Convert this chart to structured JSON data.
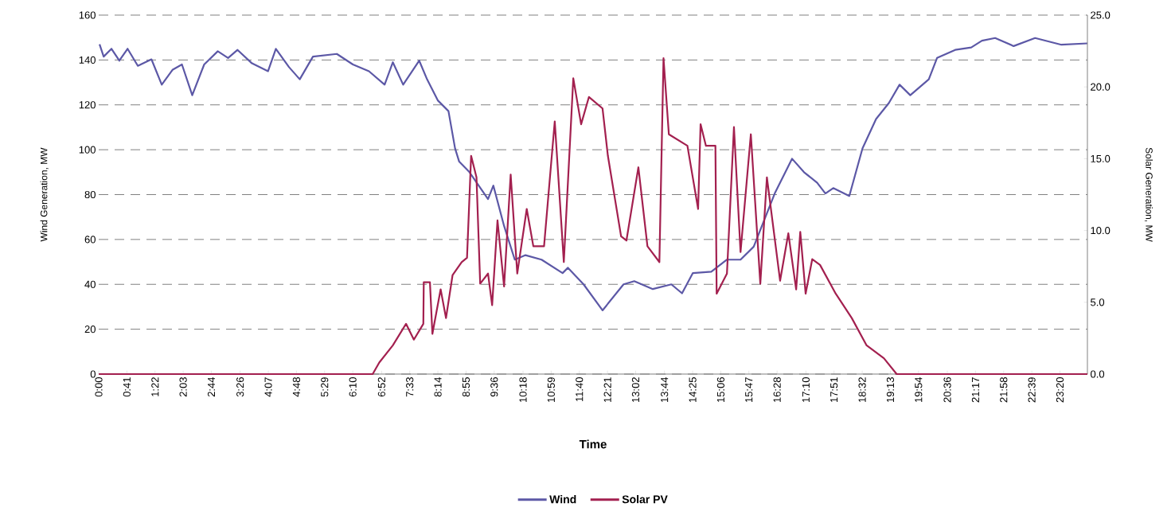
{
  "chart_data": {
    "type": "line",
    "xlabel": "Time",
    "ylabel": "Wind Generation, MW",
    "y2label": "Solar Generation, MW",
    "xlim": [
      0,
      24
    ],
    "xticks": [
      {
        "value": 0,
        "label": "0:00"
      },
      {
        "value": 0.683,
        "label": "0:41"
      },
      {
        "value": 1.367,
        "label": "1:22"
      },
      {
        "value": 2.05,
        "label": "2:03"
      },
      {
        "value": 2.733,
        "label": "2:44"
      },
      {
        "value": 3.433,
        "label": "3:26"
      },
      {
        "value": 4.117,
        "label": "4:07"
      },
      {
        "value": 4.8,
        "label": "4:48"
      },
      {
        "value": 5.483,
        "label": "5:29"
      },
      {
        "value": 6.167,
        "label": "6:10"
      },
      {
        "value": 6.867,
        "label": "6:52"
      },
      {
        "value": 7.55,
        "label": "7:33"
      },
      {
        "value": 8.233,
        "label": "8:14"
      },
      {
        "value": 8.917,
        "label": "8:55"
      },
      {
        "value": 9.6,
        "label": "9:36"
      },
      {
        "value": 10.3,
        "label": "10:18"
      },
      {
        "value": 10.983,
        "label": "10:59"
      },
      {
        "value": 11.667,
        "label": "11:40"
      },
      {
        "value": 12.35,
        "label": "12:21"
      },
      {
        "value": 13.033,
        "label": "13:02"
      },
      {
        "value": 13.733,
        "label": "13:44"
      },
      {
        "value": 14.417,
        "label": "14:25"
      },
      {
        "value": 15.1,
        "label": "15:06"
      },
      {
        "value": 15.783,
        "label": "15:47"
      },
      {
        "value": 16.467,
        "label": "16:28"
      },
      {
        "value": 17.167,
        "label": "17:10"
      },
      {
        "value": 17.85,
        "label": "17:51"
      },
      {
        "value": 18.533,
        "label": "18:32"
      },
      {
        "value": 19.217,
        "label": "19:13"
      },
      {
        "value": 19.9,
        "label": "19:54"
      },
      {
        "value": 20.6,
        "label": "20:36"
      },
      {
        "value": 21.283,
        "label": "21:17"
      },
      {
        "value": 21.967,
        "label": "21:58"
      },
      {
        "value": 22.65,
        "label": "22:39"
      },
      {
        "value": 23.333,
        "label": "23:20"
      }
    ],
    "ylim": [
      0,
      160
    ],
    "yticks": [
      0,
      20,
      40,
      60,
      80,
      100,
      120,
      140,
      160
    ],
    "y2lim": [
      0,
      25
    ],
    "y2ticks": [
      {
        "value": 0,
        "label": "0.0"
      },
      {
        "value": 5,
        "label": "5.0"
      },
      {
        "value": 10,
        "label": "10.0"
      },
      {
        "value": 15,
        "label": "15.0"
      },
      {
        "value": 20,
        "label": "20.0"
      },
      {
        "value": 25,
        "label": "25.0"
      }
    ],
    "grid": "y",
    "legend": "bottom",
    "marker": "none",
    "line_style": "solid",
    "series": [
      {
        "name": "Wind",
        "color": "#5c58a6",
        "x": [
          0.02,
          0.12,
          0.31,
          0.5,
          0.7,
          0.95,
          1.28,
          1.53,
          1.79,
          2.02,
          2.27,
          2.56,
          2.89,
          3.14,
          3.37,
          3.72,
          4.11,
          4.3,
          4.62,
          4.88,
          5.2,
          5.78,
          6.17,
          6.56,
          6.94,
          7.14,
          7.39,
          7.78,
          7.97,
          8.23,
          8.49,
          8.65,
          8.75,
          9.0,
          9.45,
          9.58,
          9.84,
          10.1,
          10.36,
          10.75,
          11.26,
          11.39,
          11.77,
          12.23,
          12.74,
          13.0,
          13.45,
          13.9,
          14.16,
          14.42,
          14.87,
          15.25,
          15.58,
          15.9,
          16.41,
          16.83,
          17.12,
          17.44,
          17.64,
          17.83,
          18.22,
          18.54,
          18.87,
          19.18,
          19.44,
          19.7,
          20.15,
          20.35,
          20.79,
          21.18,
          21.44,
          21.76,
          22.21,
          22.73,
          23.37,
          24.0
        ],
        "values": [
          147,
          141.5,
          145,
          139.7,
          145,
          137.4,
          140.3,
          129,
          135.6,
          138,
          124.3,
          138,
          143.9,
          140.9,
          144.5,
          138.5,
          135,
          145,
          136.8,
          131.4,
          141.5,
          142.7,
          138,
          135,
          129,
          139,
          129,
          139.7,
          131.4,
          122,
          117.2,
          100.6,
          94.7,
          90,
          78,
          84,
          66,
          51,
          53,
          51,
          45,
          47.4,
          40,
          28.4,
          40,
          41.4,
          37.9,
          40,
          36,
          45,
          45.6,
          51,
          51,
          56.8,
          80.5,
          96,
          90,
          85.3,
          80.5,
          82.9,
          79.4,
          100.6,
          113.7,
          120.8,
          129,
          124.3,
          131.4,
          140.9,
          144.5,
          145.6,
          148.6,
          149.8,
          146.2,
          149.8,
          146.8,
          147.4
        ]
      },
      {
        "name": "Solar PV",
        "color": "#a3204f",
        "axis": "y2",
        "x": [
          0.0,
          6.65,
          6.81,
          7.14,
          7.46,
          7.65,
          7.88,
          7.89,
          8.04,
          8.1,
          8.3,
          8.43,
          8.59,
          8.81,
          8.94,
          9.04,
          9.17,
          9.26,
          9.45,
          9.55,
          9.68,
          9.84,
          10.0,
          10.16,
          10.39,
          10.55,
          10.81,
          11.07,
          11.29,
          11.52,
          11.71,
          11.9,
          12.23,
          12.36,
          12.68,
          12.81,
          13.1,
          13.32,
          13.61,
          13.71,
          13.84,
          14.29,
          14.55,
          14.61,
          14.74,
          14.97,
          15.0,
          15.25,
          15.42,
          15.58,
          15.83,
          16.06,
          16.22,
          16.54,
          16.74,
          16.93,
          17.03,
          17.16,
          17.32,
          17.51,
          17.89,
          18.28,
          18.64,
          19.06,
          19.37,
          24.0
        ],
        "values": [
          0,
          0,
          0.8,
          2.0,
          3.5,
          2.4,
          3.5,
          6.4,
          6.4,
          2.8,
          5.9,
          3.9,
          6.9,
          7.8,
          8.1,
          15.2,
          13.7,
          6.3,
          7.0,
          4.8,
          10.7,
          6.1,
          13.9,
          7.0,
          11.5,
          8.9,
          8.9,
          17.6,
          7.8,
          20.6,
          17.4,
          19.3,
          18.5,
          15.2,
          9.6,
          9.3,
          14.4,
          8.9,
          7.8,
          22.0,
          16.7,
          15.9,
          11.5,
          17.4,
          15.9,
          15.9,
          5.6,
          7.0,
          17.2,
          8.5,
          16.7,
          6.3,
          13.7,
          6.5,
          9.8,
          5.9,
          9.9,
          5.6,
          8.0,
          7.6,
          5.6,
          3.9,
          2.0,
          1.1,
          0,
          0
        ]
      }
    ]
  }
}
